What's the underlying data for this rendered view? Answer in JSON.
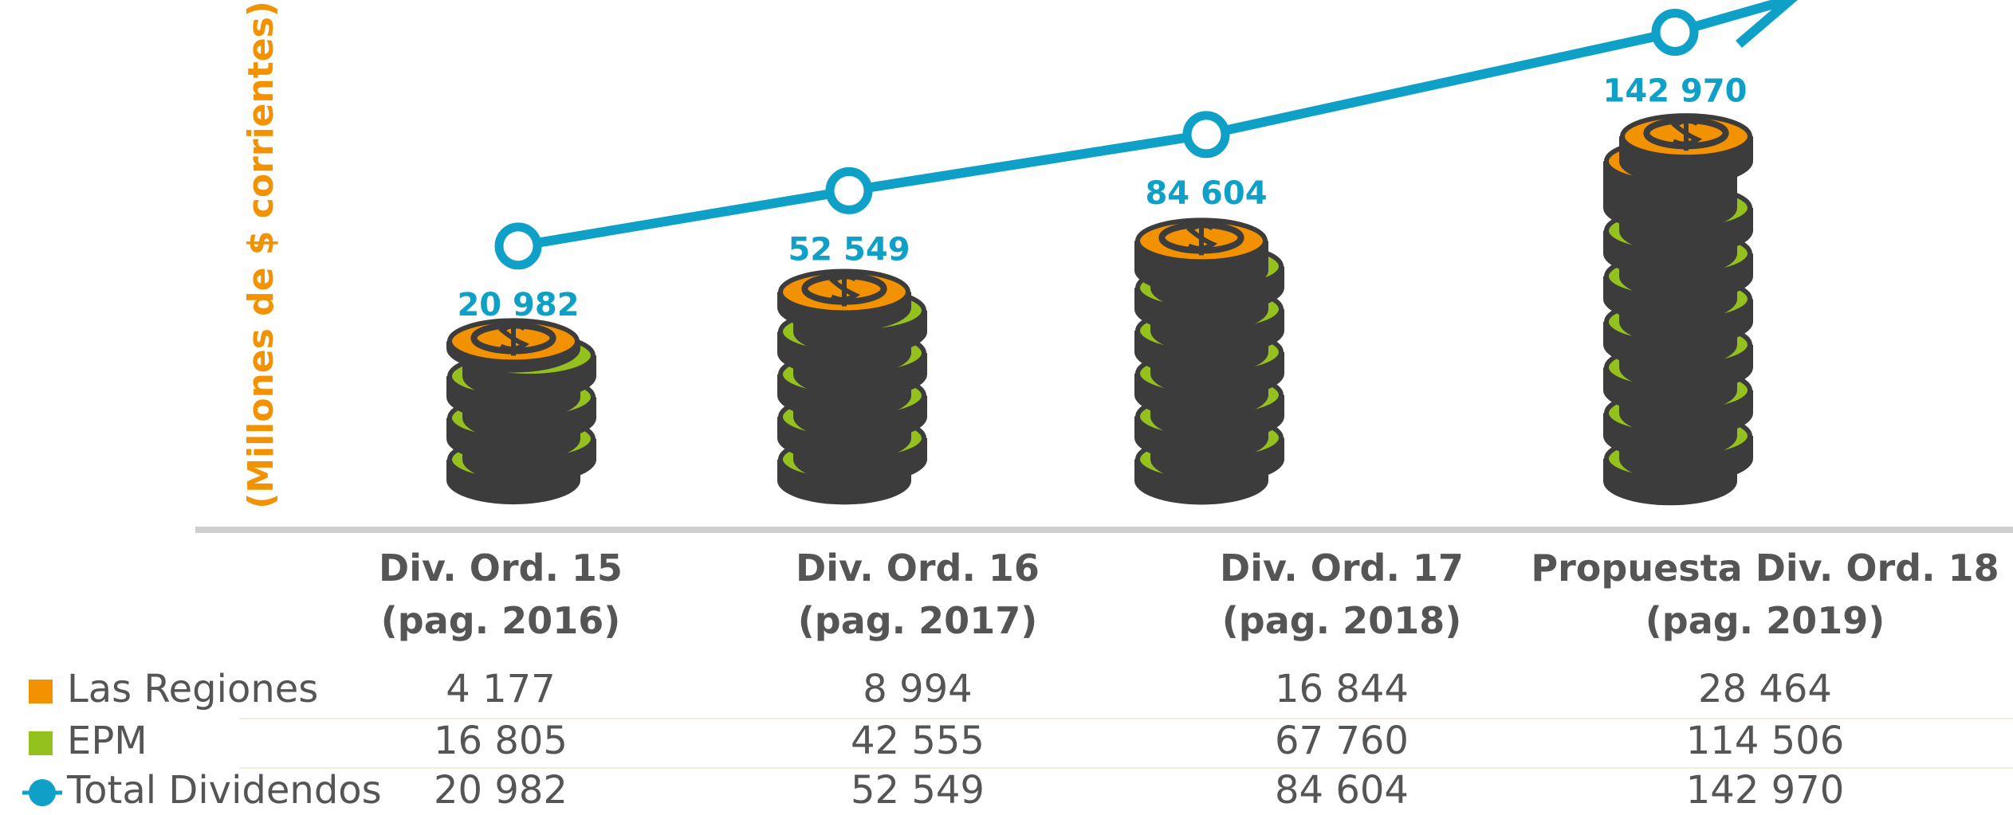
{
  "chart_data": {
    "type": "bar",
    "y_label": "(Millones de $ corrientes)",
    "categories": [
      "Div. Ord. 15\n(pag. 2016)",
      "Div. Ord. 16\n(pag. 2017)",
      "Div. Ord. 17\n(pag. 2018)",
      "Propuesta Div. Ord. 18\n(pag. 2019)"
    ],
    "series": [
      {
        "name": "Las Regiones",
        "color": "#f39200",
        "values": [
          4177,
          8994,
          16844,
          28464
        ],
        "value_labels": [
          "4 177",
          "8 994",
          "16 844",
          "28 464"
        ]
      },
      {
        "name": "EPM",
        "color": "#95c11f",
        "values": [
          16805,
          42555,
          67760,
          114506
        ],
        "value_labels": [
          "16 805",
          "42 555",
          "67 760",
          "114 506"
        ]
      },
      {
        "name": "Total Dividendos",
        "type": "line",
        "color": "#0fa0c8",
        "values": [
          20982,
          52549,
          84604,
          142970
        ],
        "value_labels": [
          "20 982",
          "52 549",
          "84 604",
          "142 970"
        ]
      }
    ]
  }
}
